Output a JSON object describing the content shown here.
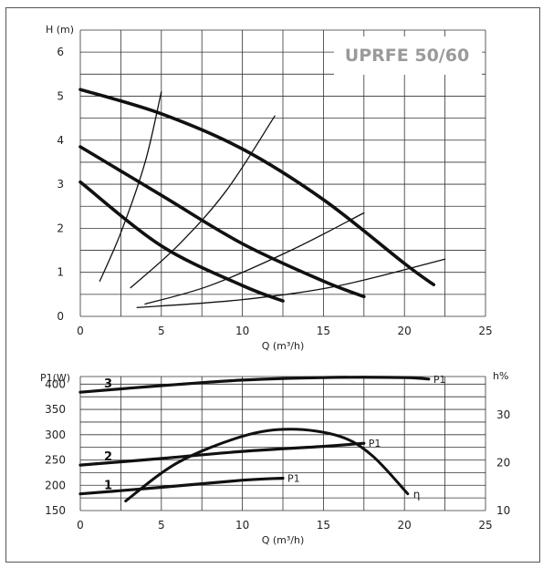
{
  "chart_data": [
    {
      "type": "line",
      "title": "UPRFE 50/60",
      "xlabel": "Q (m³/h)",
      "ylabel": "H (m)",
      "xlim": [
        0,
        25
      ],
      "ylim": [
        0,
        6.5
      ],
      "xticks": [
        "0",
        "5",
        "10",
        "15",
        "20",
        "25"
      ],
      "yticks": [
        "0",
        "1",
        "2",
        "3",
        "4",
        "5",
        "6"
      ],
      "grid": true,
      "series": [
        {
          "x": [
            0,
            5,
            10,
            15,
            20,
            21.8
          ],
          "y": [
            5.15,
            4.6,
            3.8,
            2.65,
            1.2,
            0.72
          ],
          "weight": "thick"
        },
        {
          "x": [
            0,
            5,
            10,
            15,
            17.5
          ],
          "y": [
            3.85,
            2.75,
            1.65,
            0.8,
            0.45
          ],
          "weight": "thick"
        },
        {
          "x": [
            0,
            5,
            10,
            12.5
          ],
          "y": [
            3.05,
            1.6,
            0.7,
            0.35
          ],
          "weight": "thick"
        },
        {
          "x": [
            1.2,
            2.5,
            4,
            5
          ],
          "y": [
            0.8,
            1.9,
            3.5,
            5.1
          ],
          "weight": "thin"
        },
        {
          "x": [
            3.1,
            6,
            9,
            12
          ],
          "y": [
            0.65,
            1.6,
            2.85,
            4.55
          ],
          "weight": "thin"
        },
        {
          "x": [
            4,
            8,
            13,
            17.5
          ],
          "y": [
            0.28,
            0.7,
            1.5,
            2.35
          ],
          "weight": "thin"
        },
        {
          "x": [
            3.5,
            10,
            16,
            22.5
          ],
          "y": [
            0.2,
            0.38,
            0.7,
            1.3
          ],
          "weight": "thin"
        }
      ]
    },
    {
      "type": "line",
      "title": "",
      "xlabel": "Q (m³/h)",
      "ylabel": "P1(W)",
      "y2label": "h%",
      "xlim": [
        0,
        25
      ],
      "ylim": [
        150,
        415
      ],
      "y2lim": [
        10,
        38
      ],
      "xticks": [
        "0",
        "5",
        "10",
        "15",
        "20",
        "25"
      ],
      "yticks": [
        "150",
        "200",
        "250",
        "300",
        "350",
        "400"
      ],
      "y2ticks": [
        "10",
        "20",
        "30"
      ],
      "grid": true,
      "series": [
        {
          "label": "3",
          "end_label": "P1",
          "x": [
            0,
            5,
            10,
            15,
            20,
            21.5
          ],
          "y": [
            384,
            397,
            408,
            413,
            413,
            410
          ],
          "axis": "left"
        },
        {
          "label": "2",
          "end_label": "P1",
          "x": [
            0,
            5,
            10,
            15,
            17.5
          ],
          "y": [
            240,
            253,
            267,
            277,
            283
          ],
          "axis": "left"
        },
        {
          "label": "1",
          "end_label": "P1",
          "x": [
            0,
            5,
            10,
            12.5
          ],
          "y": [
            183,
            196,
            210,
            214
          ],
          "axis": "left"
        },
        {
          "label": "",
          "end_label": "η",
          "x": [
            2.8,
            6,
            10,
            13,
            16,
            18,
            20.2
          ],
          "y": [
            12,
            20,
            25.5,
            27,
            25.5,
            21.5,
            13.5
          ],
          "axis": "right"
        }
      ]
    }
  ]
}
